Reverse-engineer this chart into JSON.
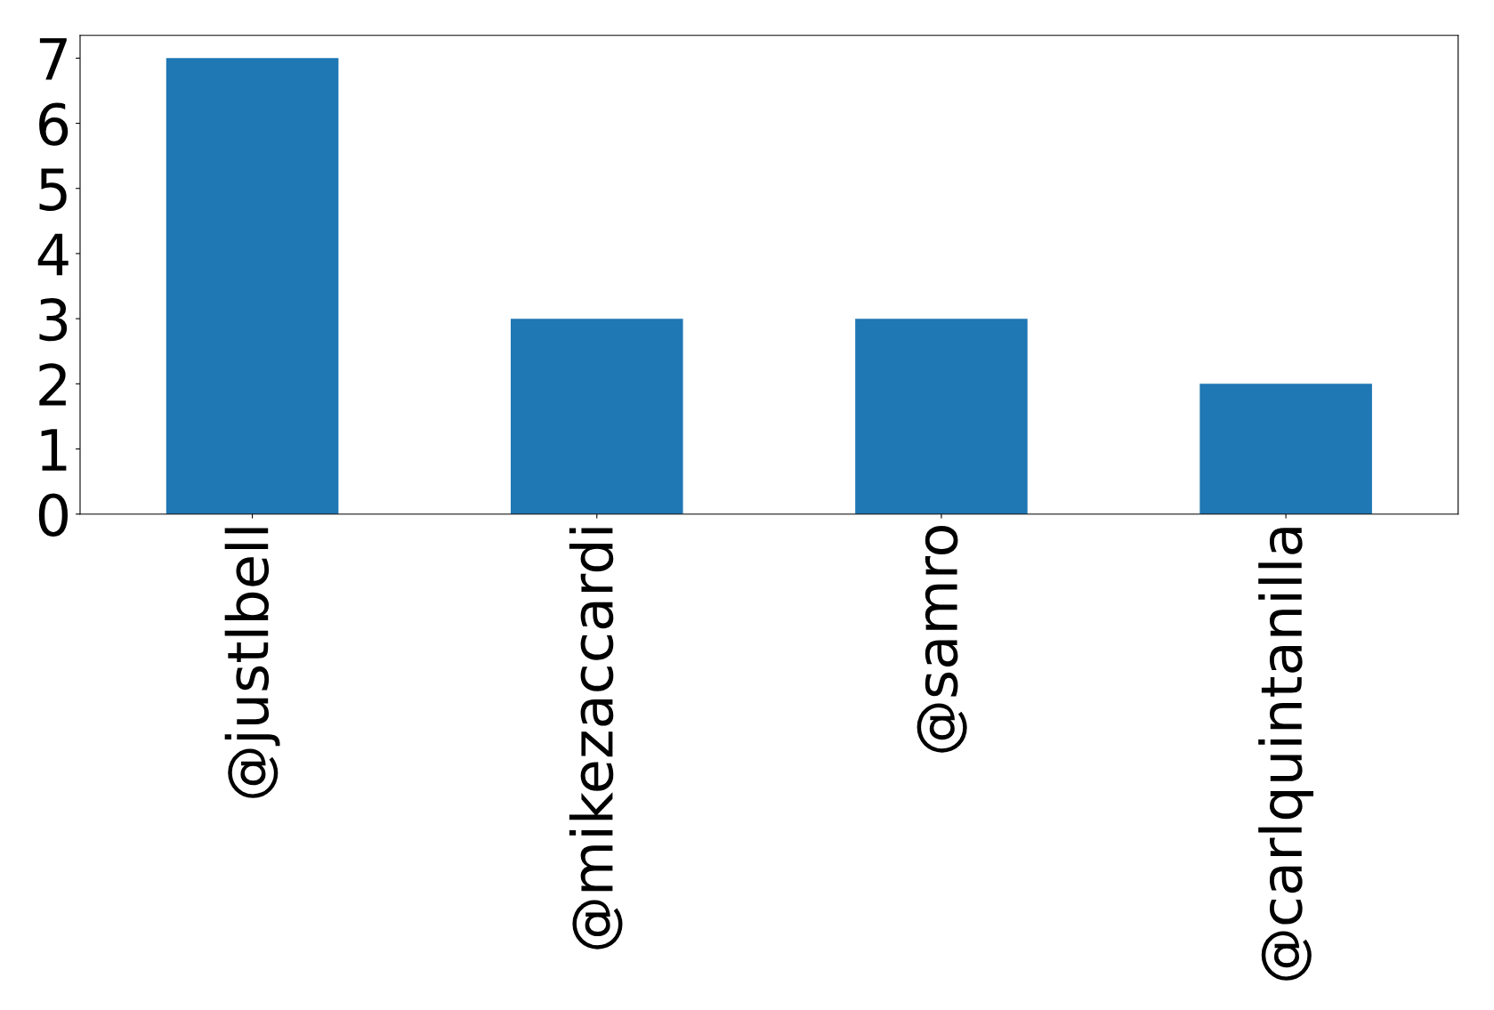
{
  "chart_data": {
    "type": "bar",
    "categories": [
      "@justlbell",
      "@mikezaccardi",
      "@samro",
      "@carlquintanilla"
    ],
    "values": [
      7,
      3,
      3,
      2
    ],
    "color": "#1f77b4",
    "ylim": [
      0,
      7.35
    ],
    "yticks": [
      0,
      1,
      2,
      3,
      4,
      5,
      6,
      7
    ],
    "grid": false,
    "legend": false
  }
}
